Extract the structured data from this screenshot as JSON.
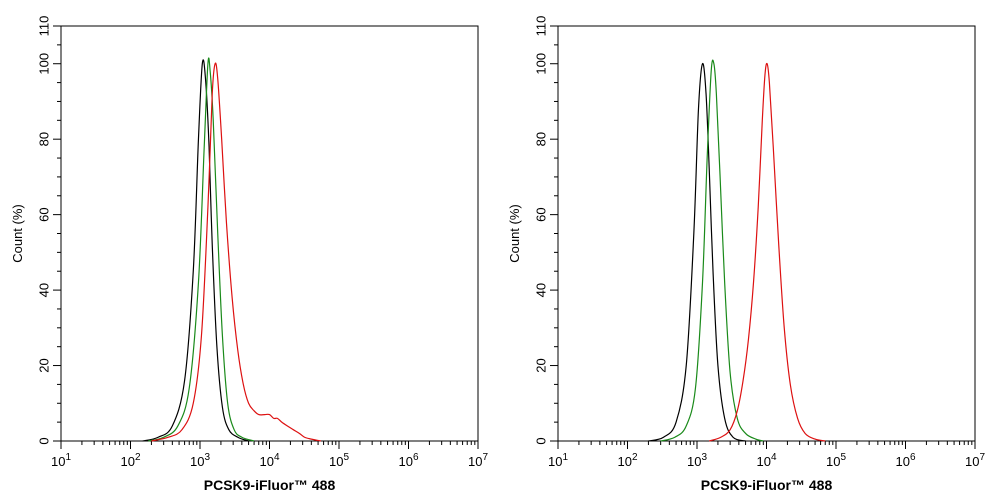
{
  "chart_data": [
    {
      "type": "line",
      "xscale": "log",
      "xlim": [
        10,
        10000000
      ],
      "ylim": [
        0,
        110
      ],
      "x_ticks": [
        10,
        100,
        1000,
        10000,
        100000,
        1000000,
        10000000
      ],
      "x_tick_labels": [
        {
          "base": "10",
          "exp": "1"
        },
        {
          "base": "10",
          "exp": "2"
        },
        {
          "base": "10",
          "exp": "3"
        },
        {
          "base": "10",
          "exp": "4"
        },
        {
          "base": "10",
          "exp": "5"
        },
        {
          "base": "10",
          "exp": "6"
        },
        {
          "base": "10",
          "exp": "7"
        }
      ],
      "y_ticks": [
        0,
        20,
        40,
        60,
        80,
        100,
        110
      ],
      "y_tick_labels": [
        "0",
        "20",
        "40",
        "60",
        "80",
        "100",
        "110"
      ],
      "xlabel": "PCSK9-iFluor™ 488",
      "ylabel": "Count  (%)",
      "grid": false,
      "series": [
        {
          "color": "#000000",
          "x": [
            150,
            250,
            400,
            600,
            800,
            950,
            1080,
            1200,
            1350,
            1500,
            1750,
            2100,
            2600,
            3500,
            5000
          ],
          "y": [
            0,
            1,
            4,
            16,
            45,
            80,
            100,
            96,
            78,
            52,
            25,
            9,
            3,
            1,
            0
          ]
        },
        {
          "color": "#1a8a1a",
          "x": [
            180,
            300,
            480,
            700,
            950,
            1150,
            1300,
            1400,
            1550,
            1800,
            2100,
            2500,
            3100,
            4000,
            6000
          ],
          "y": [
            0,
            1,
            4,
            14,
            42,
            78,
            100,
            98,
            85,
            55,
            28,
            10,
            3,
            1,
            0
          ]
        },
        {
          "color": "#dd1111",
          "x": [
            200,
            350,
            550,
            800,
            1050,
            1300,
            1500,
            1650,
            1800,
            2050,
            2400,
            2900,
            3500,
            4200,
            5000,
            6000,
            7000,
            8500,
            10000,
            11500,
            13000,
            15000,
            18000,
            22000,
            27000,
            32000,
            40000,
            55000
          ],
          "y": [
            0,
            1,
            3,
            10,
            28,
            62,
            92,
            100,
            96,
            80,
            58,
            38,
            24,
            15,
            10,
            8,
            7,
            7,
            7,
            6,
            6,
            5,
            4,
            3,
            2,
            1,
            0.5,
            0
          ]
        }
      ]
    },
    {
      "type": "line",
      "xscale": "log",
      "xlim": [
        10,
        10000000
      ],
      "ylim": [
        0,
        110
      ],
      "x_ticks": [
        10,
        100,
        1000,
        10000,
        100000,
        1000000,
        10000000
      ],
      "x_tick_labels": [
        {
          "base": "10",
          "exp": "1"
        },
        {
          "base": "10",
          "exp": "2"
        },
        {
          "base": "10",
          "exp": "3"
        },
        {
          "base": "10",
          "exp": "4"
        },
        {
          "base": "10",
          "exp": "5"
        },
        {
          "base": "10",
          "exp": "6"
        },
        {
          "base": "10",
          "exp": "7"
        }
      ],
      "y_ticks": [
        0,
        20,
        40,
        60,
        80,
        100,
        110
      ],
      "y_tick_labels": [
        "0",
        "20",
        "40",
        "60",
        "80",
        "100",
        "110"
      ],
      "xlabel": "PCSK9-iFluor™ 488",
      "ylabel": "Count  (%)",
      "grid": false,
      "series": [
        {
          "color": "#000000",
          "x": [
            200,
            330,
            500,
            700,
            900,
            1050,
            1200,
            1350,
            1500,
            1700,
            2000,
            2500,
            3300,
            5000
          ],
          "y": [
            0,
            1,
            5,
            20,
            55,
            88,
            100,
            92,
            72,
            45,
            20,
            6,
            1,
            0
          ]
        },
        {
          "color": "#1a8a1a",
          "x": [
            300,
            480,
            700,
            950,
            1200,
            1400,
            1600,
            1750,
            1900,
            2150,
            2500,
            3000,
            3800,
            5000,
            7000,
            9000
          ],
          "y": [
            0,
            1,
            4,
            14,
            42,
            75,
            98,
            100,
            92,
            70,
            42,
            18,
            6,
            2,
            0.5,
            0
          ]
        },
        {
          "color": "#dd1111",
          "x": [
            1500,
            2200,
            3000,
            3800,
            4600,
            5500,
            6500,
            7600,
            8700,
            9500,
            10200,
            11000,
            12500,
            15000,
            18000,
            22000,
            28000,
            36000,
            50000,
            70000
          ],
          "y": [
            0,
            1,
            3,
            8,
            16,
            27,
            42,
            62,
            85,
            97,
            100,
            95,
            78,
            52,
            30,
            15,
            6,
            2,
            0.5,
            0
          ]
        }
      ]
    }
  ]
}
